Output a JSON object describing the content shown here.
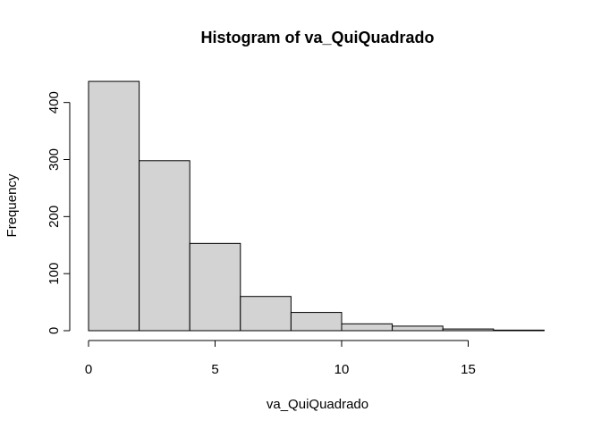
{
  "chart_data": {
    "type": "bar",
    "title": "Histogram of va_QuiQuadrado",
    "xlabel": "va_QuiQuadrado",
    "ylabel": "Frequency",
    "bins": [
      {
        "start": 0,
        "end": 2,
        "count": 437
      },
      {
        "start": 2,
        "end": 4,
        "count": 298
      },
      {
        "start": 4,
        "end": 6,
        "count": 153
      },
      {
        "start": 6,
        "end": 8,
        "count": 60
      },
      {
        "start": 8,
        "end": 10,
        "count": 32
      },
      {
        "start": 10,
        "end": 12,
        "count": 12
      },
      {
        "start": 12,
        "end": 14,
        "count": 8
      },
      {
        "start": 14,
        "end": 16,
        "count": 3
      },
      {
        "start": 16,
        "end": 18,
        "count": 1
      }
    ],
    "xticks": [
      "0",
      "5",
      "10",
      "15"
    ],
    "yticks": [
      "0",
      "100",
      "200",
      "300",
      "400"
    ],
    "xlim": [
      0,
      18
    ],
    "ylim": [
      0,
      400
    ],
    "grid": false,
    "bar_fill": "#d3d3d3",
    "bar_stroke": "#000000"
  }
}
